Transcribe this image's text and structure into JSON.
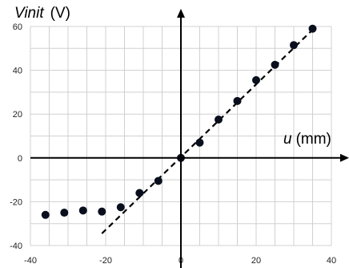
{
  "chart_data": {
    "type": "scatter",
    "ylabel_italic": "Vinit",
    "ylabel_unit": "(V)",
    "xlabel_italic": "u",
    "xlabel_unit": "(mm)",
    "xlim": [
      -40,
      40
    ],
    "ylim": [
      -40,
      60
    ],
    "x_ticks": [
      "-40",
      "-20",
      "0",
      "20",
      "40"
    ],
    "y_ticks": [
      "-40",
      "-20",
      "0",
      "20",
      "40",
      "60"
    ],
    "grid": true,
    "points": [
      {
        "x": -36,
        "y": -26
      },
      {
        "x": -31,
        "y": -25
      },
      {
        "x": -26,
        "y": -24
      },
      {
        "x": -21,
        "y": -24.5
      },
      {
        "x": -16,
        "y": -22.5
      },
      {
        "x": -11,
        "y": -16
      },
      {
        "x": -6,
        "y": -10.5
      },
      {
        "x": 0,
        "y": 0
      },
      {
        "x": 5,
        "y": 7
      },
      {
        "x": 10,
        "y": 17.5
      },
      {
        "x": 15,
        "y": 26
      },
      {
        "x": 20,
        "y": 35.5
      },
      {
        "x": 25,
        "y": 42.5
      },
      {
        "x": 30,
        "y": 51.5
      },
      {
        "x": 35,
        "y": 59
      }
    ],
    "fit_line": {
      "style": "dashed",
      "x": [
        -21,
        35
      ],
      "y": [
        -34.5,
        58.5
      ]
    },
    "colors": {
      "points": "#0a0f1e",
      "fit_line": "#000000",
      "grid": "#d0d0d0",
      "axes": "#000000"
    }
  }
}
